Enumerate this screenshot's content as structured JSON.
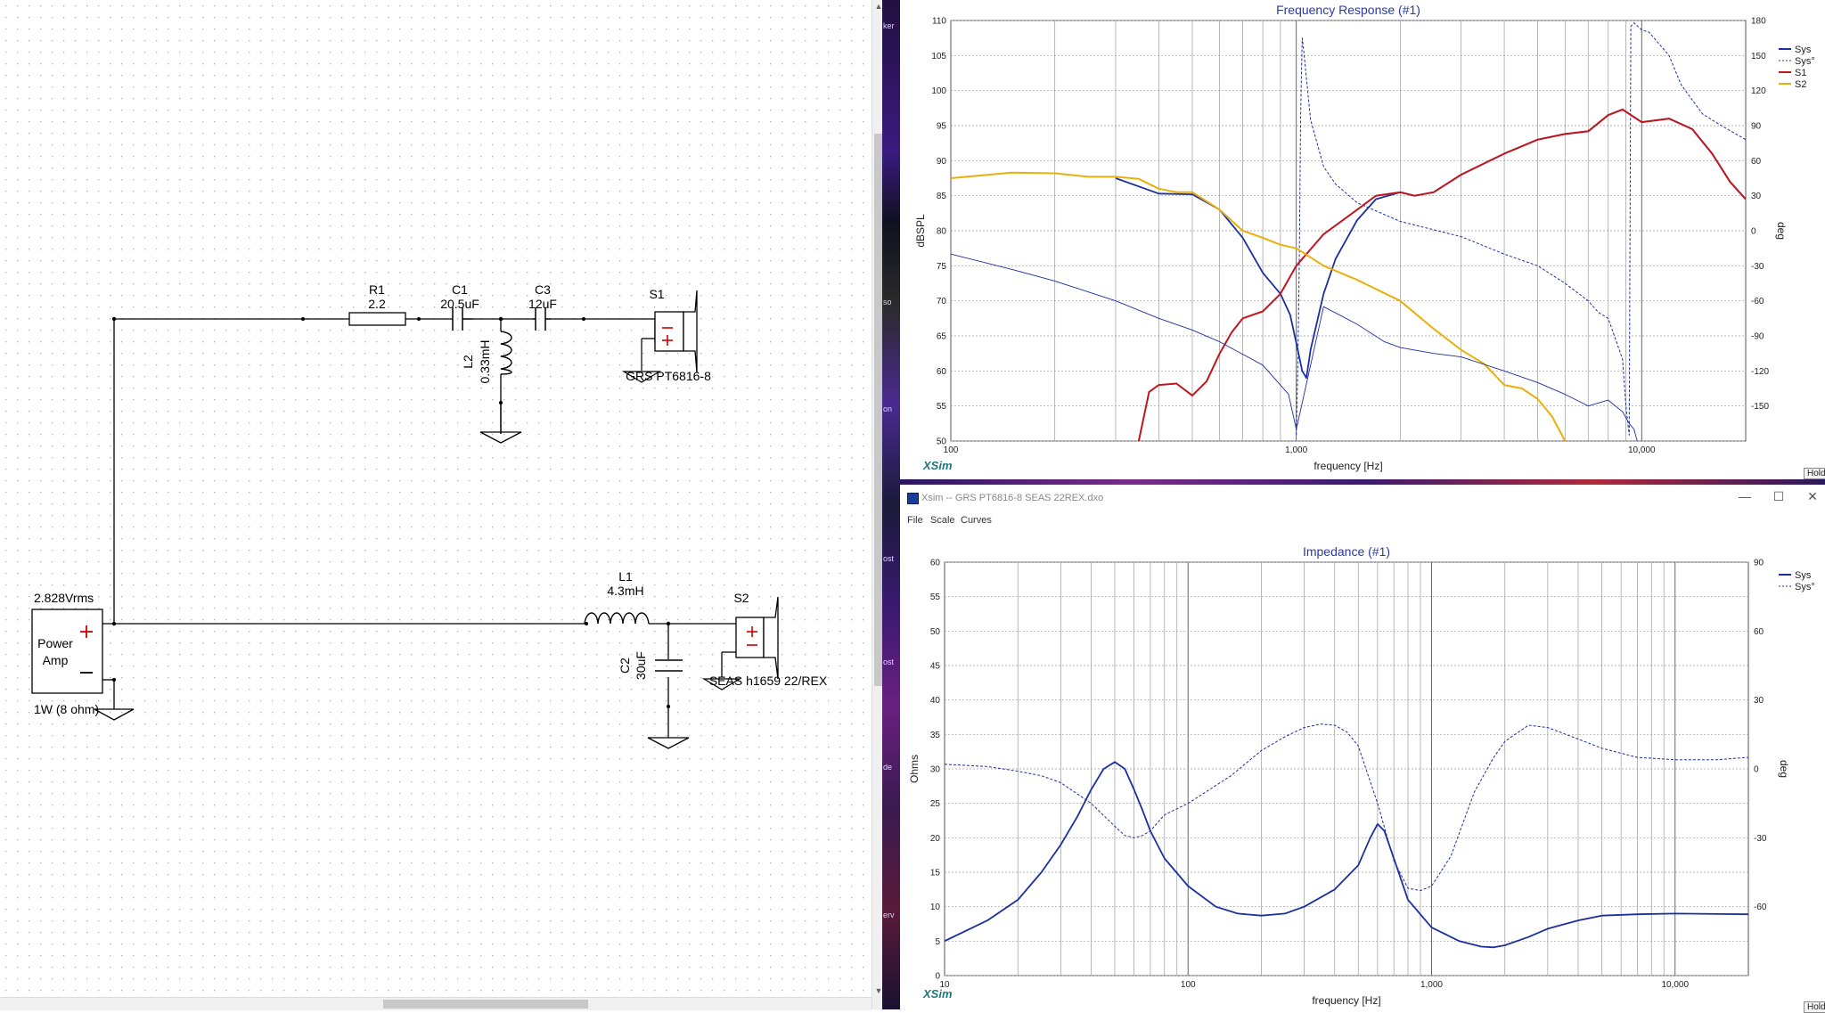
{
  "schematic": {
    "components": {
      "r1": {
        "name": "R1",
        "value": "2.2"
      },
      "c1": {
        "name": "C1",
        "value": "20.5uF"
      },
      "c3": {
        "name": "C3",
        "value": "12uF"
      },
      "l2": {
        "name": "L2",
        "value": "0.33mH"
      },
      "s1": {
        "name": "S1",
        "model": "GRS PT6816-8"
      },
      "l1": {
        "name": "L1",
        "value": "4.3mH"
      },
      "c2": {
        "name": "C2",
        "value": "30uF"
      },
      "s2": {
        "name": "S2",
        "model": "SEAS h1659 22/REX"
      },
      "amp": {
        "voltage": "2.828Vrms",
        "label_line1": "Power",
        "label_line2": "Amp",
        "power": "1W (8 ohm)"
      }
    }
  },
  "side_strip": {
    "fragments": [
      "ker",
      "so",
      "on",
      "ost",
      "ost",
      "de",
      "erv"
    ]
  },
  "freq_window": {
    "hold_label": "Hold",
    "brand": "XSim"
  },
  "imp_window": {
    "title": "Xsim -- GRS PT6816-8 SEAS 22REX.dxo",
    "menu": [
      "File",
      "Scale",
      "Curves"
    ],
    "hold_label": "Hold",
    "brand": "XSim"
  },
  "colors": {
    "sys": "#1c2fa0",
    "s1": "#c0161e",
    "s2": "#e8b00c",
    "grid": "#999999",
    "title": "#2a3aa8"
  },
  "chart_data": [
    {
      "type": "line",
      "title": "Frequency Response (#1)",
      "xlabel": "frequency [Hz]",
      "ylabel": "dBSPL",
      "y2label": "deg",
      "xscale": "log",
      "xlim": [
        100,
        20000
      ],
      "ylim": [
        50,
        110
      ],
      "y2lim": [
        -180,
        180
      ],
      "x_tick_labels": [
        "100",
        "1,000",
        "10,000"
      ],
      "y_ticks": [
        50,
        55,
        60,
        65,
        70,
        75,
        80,
        85,
        90,
        95,
        100,
        105,
        110
      ],
      "y2_ticks": [
        -150,
        -120,
        -90,
        -60,
        -30,
        0,
        30,
        60,
        90,
        120,
        150,
        180
      ],
      "grid": true,
      "legend_position": "top-right",
      "series": [
        {
          "name": "Sys",
          "axis": "left",
          "style": "solid",
          "points": [
            [
              300,
              87.5
            ],
            [
              400,
              85.3
            ],
            [
              500,
              85.2
            ],
            [
              600,
              83
            ],
            [
              700,
              79
            ],
            [
              800,
              74
            ],
            [
              900,
              71
            ],
            [
              960,
              68
            ],
            [
              1000,
              64
            ],
            [
              1040,
              60
            ],
            [
              1070,
              59
            ],
            [
              1100,
              63
            ],
            [
              1200,
              71
            ],
            [
              1300,
              76
            ],
            [
              1500,
              81.5
            ],
            [
              1700,
              84.5
            ],
            [
              2000,
              85.5
            ],
            [
              2200,
              85
            ],
            [
              2500,
              85.5
            ],
            [
              3000,
              88
            ],
            [
              4000,
              91
            ],
            [
              5000,
              93
            ],
            [
              6000,
              93.8
            ],
            [
              7000,
              94.2
            ],
            [
              8000,
              96.5
            ],
            [
              8800,
              97.3
            ],
            [
              10000,
              95.5
            ],
            [
              12000,
              96
            ],
            [
              14000,
              94.5
            ],
            [
              16000,
              91
            ],
            [
              18000,
              87
            ],
            [
              20000,
              84.5
            ]
          ]
        },
        {
          "name": "Sys°",
          "axis": "right",
          "style": "dashed",
          "points": [
            [
              1000,
              -175
            ],
            [
              1010,
              -120
            ],
            [
              1020,
              -30
            ],
            [
              1030,
              100
            ],
            [
              1040,
              165
            ],
            [
              1050,
              155
            ],
            [
              1100,
              95
            ],
            [
              1200,
              55
            ],
            [
              1300,
              40
            ],
            [
              1500,
              24
            ],
            [
              2000,
              8
            ],
            [
              3000,
              -5
            ],
            [
              4000,
              -20
            ],
            [
              5000,
              -30
            ],
            [
              6000,
              -45
            ],
            [
              7000,
              -60
            ],
            [
              7500,
              -70
            ],
            [
              8000,
              -75
            ],
            [
              8800,
              -110
            ],
            [
              9000,
              -150
            ],
            [
              9200,
              -175
            ],
            [
              9300,
              175
            ],
            [
              9500,
              178
            ],
            [
              10000,
              172
            ],
            [
              10500,
              170
            ],
            [
              12000,
              150
            ],
            [
              13000,
              125
            ],
            [
              15000,
              100
            ],
            [
              17000,
              90
            ],
            [
              20000,
              78
            ]
          ]
        },
        {
          "name": "S1",
          "axis": "left",
          "style": "solid",
          "points": [
            [
              350,
              50
            ],
            [
              375,
              57
            ],
            [
              400,
              58
            ],
            [
              450,
              58.2
            ],
            [
              500,
              56.5
            ],
            [
              550,
              58.5
            ],
            [
              600,
              62.5
            ],
            [
              650,
              65.5
            ],
            [
              700,
              67.5
            ],
            [
              800,
              68.5
            ],
            [
              900,
              71
            ],
            [
              1000,
              75
            ],
            [
              1200,
              79.5
            ],
            [
              1500,
              83
            ],
            [
              1700,
              85
            ],
            [
              2000,
              85.5
            ],
            [
              2200,
              85
            ],
            [
              2500,
              85.5
            ],
            [
              3000,
              88
            ],
            [
              4000,
              91
            ],
            [
              5000,
              93
            ],
            [
              6000,
              93.8
            ],
            [
              7000,
              94.2
            ],
            [
              8000,
              96.5
            ],
            [
              8800,
              97.3
            ],
            [
              10000,
              95.5
            ],
            [
              12000,
              96
            ],
            [
              14000,
              94.5
            ],
            [
              16000,
              91
            ],
            [
              18000,
              87
            ],
            [
              20000,
              84.5
            ]
          ]
        },
        {
          "name": "S2",
          "axis": "left",
          "style": "solid",
          "points": [
            [
              100,
              87.5
            ],
            [
              150,
              88.3
            ],
            [
              200,
              88.2
            ],
            [
              250,
              87.7
            ],
            [
              300,
              87.7
            ],
            [
              350,
              87.4
            ],
            [
              400,
              86
            ],
            [
              450,
              85.5
            ],
            [
              500,
              85.5
            ],
            [
              600,
              83
            ],
            [
              700,
              80
            ],
            [
              800,
              79
            ],
            [
              900,
              78
            ],
            [
              1000,
              77.5
            ],
            [
              1200,
              75
            ],
            [
              1500,
              73
            ],
            [
              2000,
              70
            ],
            [
              2500,
              66
            ],
            [
              3000,
              63
            ],
            [
              3500,
              61
            ],
            [
              4000,
              58
            ],
            [
              4500,
              57.5
            ],
            [
              5000,
              56
            ],
            [
              5500,
              53.5
            ],
            [
              6000,
              50
            ]
          ]
        },
        {
          "name": "",
          "axis": "right",
          "style": "thin",
          "points": [
            [
              100,
              -20
            ],
            [
              150,
              -33
            ],
            [
              200,
              -43
            ],
            [
              300,
              -60
            ],
            [
              400,
              -75
            ],
            [
              500,
              -85
            ],
            [
              600,
              -95
            ],
            [
              800,
              -115
            ],
            [
              950,
              -140
            ],
            [
              1000,
              -170
            ],
            [
              1200,
              -65
            ],
            [
              1500,
              -80
            ],
            [
              1800,
              -95
            ],
            [
              2000,
              -100
            ],
            [
              2500,
              -105
            ],
            [
              3000,
              -108
            ],
            [
              4000,
              -120
            ],
            [
              5000,
              -130
            ],
            [
              6000,
              -140
            ],
            [
              7000,
              -150
            ],
            [
              8000,
              -145
            ],
            [
              8800,
              -155
            ],
            [
              9200,
              -165
            ],
            [
              9500,
              -170
            ],
            [
              9700,
              -180
            ]
          ]
        }
      ]
    },
    {
      "type": "line",
      "title": "Impedance (#1)",
      "xlabel": "frequency [Hz]",
      "ylabel": "Ohms",
      "y2label": "deg",
      "xscale": "log",
      "xlim": [
        10,
        20000
      ],
      "ylim": [
        0,
        60
      ],
      "y2lim": [
        -90,
        90
      ],
      "x_tick_labels": [
        "10",
        "100",
        "1,000",
        "10,000"
      ],
      "y_ticks": [
        0,
        5,
        10,
        15,
        20,
        25,
        30,
        35,
        40,
        45,
        50,
        55,
        60
      ],
      "y2_ticks": [
        -60,
        -30,
        0,
        30,
        60,
        90
      ],
      "grid": true,
      "legend_position": "top-right",
      "series": [
        {
          "name": "Sys",
          "axis": "left",
          "style": "solid",
          "points": [
            [
              10,
              5
            ],
            [
              15,
              8
            ],
            [
              20,
              11
            ],
            [
              25,
              15
            ],
            [
              30,
              19
            ],
            [
              35,
              23
            ],
            [
              40,
              27
            ],
            [
              45,
              30
            ],
            [
              50,
              31
            ],
            [
              55,
              30
            ],
            [
              60,
              27
            ],
            [
              65,
              24
            ],
            [
              70,
              21
            ],
            [
              80,
              17
            ],
            [
              100,
              13
            ],
            [
              130,
              10
            ],
            [
              160,
              9
            ],
            [
              200,
              8.7
            ],
            [
              250,
              9
            ],
            [
              300,
              10
            ],
            [
              400,
              12.5
            ],
            [
              500,
              16
            ],
            [
              560,
              20
            ],
            [
              600,
              22
            ],
            [
              640,
              21
            ],
            [
              700,
              17
            ],
            [
              800,
              11
            ],
            [
              1000,
              7
            ],
            [
              1300,
              5
            ],
            [
              1600,
              4.2
            ],
            [
              1800,
              4.1
            ],
            [
              2000,
              4.4
            ],
            [
              2500,
              5.6
            ],
            [
              3000,
              6.8
            ],
            [
              4000,
              8
            ],
            [
              5000,
              8.7
            ],
            [
              7000,
              8.9
            ],
            [
              10000,
              9
            ],
            [
              20000,
              8.9
            ]
          ]
        },
        {
          "name": "Sys°",
          "axis": "right",
          "style": "dashed",
          "points": [
            [
              10,
              2
            ],
            [
              15,
              1
            ],
            [
              20,
              -1
            ],
            [
              25,
              -3
            ],
            [
              30,
              -6
            ],
            [
              40,
              -15
            ],
            [
              50,
              -25
            ],
            [
              55,
              -29
            ],
            [
              60,
              -30
            ],
            [
              65,
              -29
            ],
            [
              70,
              -27
            ],
            [
              80,
              -20
            ],
            [
              100,
              -15
            ],
            [
              150,
              -3
            ],
            [
              200,
              8
            ],
            [
              250,
              14
            ],
            [
              300,
              18
            ],
            [
              350,
              19.5
            ],
            [
              400,
              19
            ],
            [
              450,
              16
            ],
            [
              500,
              10
            ],
            [
              600,
              -15
            ],
            [
              700,
              -40
            ],
            [
              800,
              -52
            ],
            [
              900,
              -53
            ],
            [
              1000,
              -51
            ],
            [
              1200,
              -38
            ],
            [
              1500,
              -10
            ],
            [
              1800,
              5
            ],
            [
              2000,
              12
            ],
            [
              2500,
              19
            ],
            [
              3000,
              18
            ],
            [
              4000,
              13
            ],
            [
              5000,
              9
            ],
            [
              7000,
              5
            ],
            [
              10000,
              4
            ],
            [
              15000,
              4
            ],
            [
              20000,
              5
            ]
          ]
        }
      ]
    }
  ]
}
